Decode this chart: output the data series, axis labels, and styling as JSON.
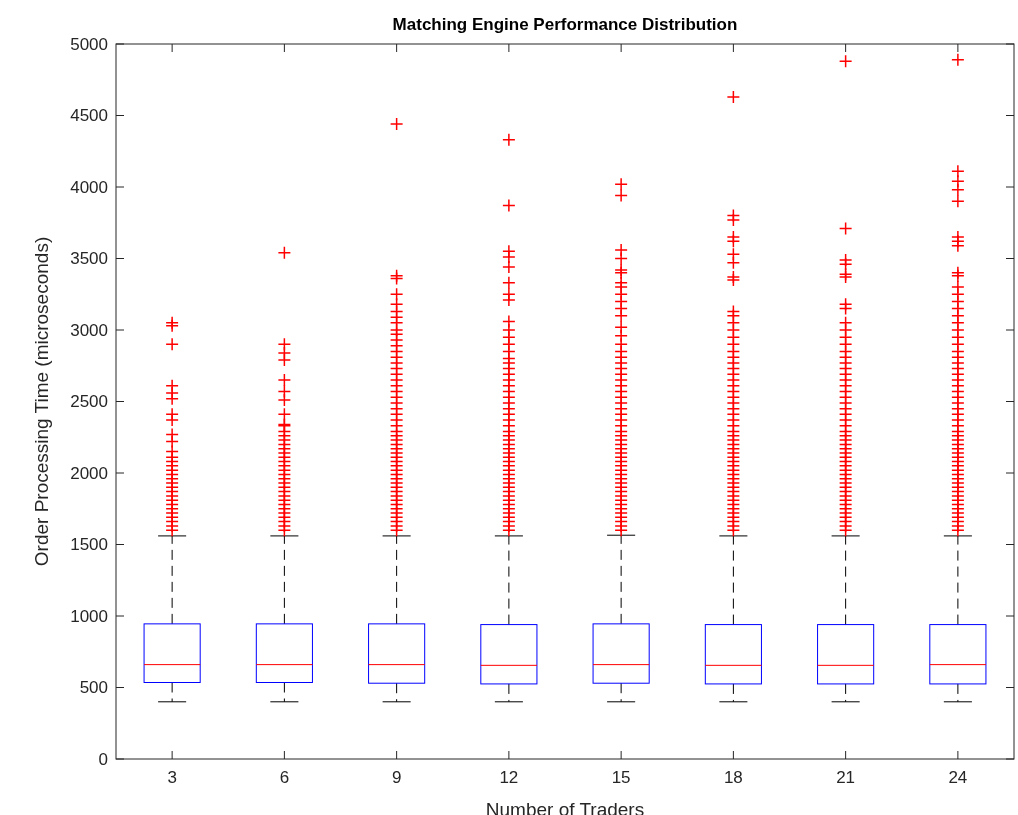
{
  "chart_data": {
    "type": "box",
    "title": "Matching Engine Performance Distribution",
    "xlabel": "Number of Traders",
    "ylabel": "Order Processing Time (microseconds)",
    "categories": [
      "3",
      "6",
      "9",
      "12",
      "15",
      "18",
      "21",
      "24"
    ],
    "color": "#0000ff",
    "ylim": [
      0,
      5000
    ],
    "yticks": [
      0,
      500,
      1000,
      1500,
      2000,
      2500,
      3000,
      3500,
      4000,
      4500,
      5000
    ],
    "boxes": [
      {
        "low": 400,
        "q1": 535,
        "median": 660,
        "q3": 945,
        "high": 1560,
        "outliers": [
          1600,
          1630,
          1660,
          1690,
          1720,
          1750,
          1780,
          1810,
          1840,
          1870,
          1900,
          1930,
          1960,
          1990,
          2020,
          2050,
          2080,
          2110,
          2150,
          2220,
          2270,
          2370,
          2410,
          2520,
          2560,
          2610,
          2900,
          3030,
          3050
        ]
      },
      {
        "low": 400,
        "q1": 535,
        "median": 660,
        "q3": 945,
        "high": 1560,
        "outliers": [
          1600,
          1630,
          1660,
          1690,
          1720,
          1750,
          1780,
          1810,
          1840,
          1870,
          1900,
          1930,
          1960,
          1990,
          2020,
          2050,
          2080,
          2110,
          2140,
          2170,
          2200,
          2230,
          2260,
          2290,
          2330,
          2340,
          2410,
          2510,
          2570,
          2650,
          2790,
          2840,
          2900,
          3540
        ]
      },
      {
        "low": 400,
        "q1": 530,
        "median": 660,
        "q3": 945,
        "high": 1560,
        "outliers": [
          1600,
          1630,
          1660,
          1690,
          1720,
          1750,
          1780,
          1810,
          1840,
          1870,
          1900,
          1930,
          1960,
          1990,
          2020,
          2050,
          2080,
          2110,
          2140,
          2170,
          2200,
          2230,
          2260,
          2290,
          2330,
          2370,
          2410,
          2450,
          2490,
          2530,
          2570,
          2610,
          2650,
          2690,
          2730,
          2770,
          2810,
          2850,
          2890,
          2930,
          2970,
          3000,
          3050,
          3090,
          3130,
          3180,
          3250,
          3360,
          3380,
          4440
        ]
      },
      {
        "low": 400,
        "q1": 525,
        "median": 655,
        "q3": 940,
        "high": 1560,
        "outliers": [
          1600,
          1630,
          1660,
          1690,
          1720,
          1750,
          1780,
          1810,
          1840,
          1870,
          1900,
          1930,
          1960,
          1990,
          2020,
          2050,
          2080,
          2110,
          2140,
          2170,
          2200,
          2230,
          2260,
          2290,
          2330,
          2370,
          2410,
          2450,
          2490,
          2530,
          2570,
          2610,
          2650,
          2690,
          2730,
          2770,
          2800,
          2850,
          2900,
          2950,
          3000,
          3060,
          3210,
          3250,
          3330,
          3440,
          3510,
          3550,
          3870,
          4330
        ]
      },
      {
        "low": 400,
        "q1": 530,
        "median": 660,
        "q3": 945,
        "high": 1565,
        "outliers": [
          1600,
          1630,
          1660,
          1690,
          1720,
          1750,
          1780,
          1810,
          1840,
          1870,
          1900,
          1930,
          1960,
          1990,
          2020,
          2050,
          2080,
          2110,
          2140,
          2170,
          2200,
          2230,
          2260,
          2290,
          2330,
          2370,
          2410,
          2450,
          2490,
          2530,
          2570,
          2610,
          2650,
          2690,
          2730,
          2770,
          2810,
          2850,
          2900,
          2960,
          3020,
          3100,
          3150,
          3200,
          3250,
          3300,
          3330,
          3400,
          3420,
          3500,
          3560,
          3940,
          4020
        ]
      },
      {
        "low": 400,
        "q1": 525,
        "median": 655,
        "q3": 940,
        "high": 1560,
        "outliers": [
          1600,
          1630,
          1660,
          1690,
          1720,
          1750,
          1780,
          1810,
          1840,
          1870,
          1900,
          1930,
          1960,
          1990,
          2020,
          2050,
          2080,
          2110,
          2140,
          2170,
          2200,
          2230,
          2260,
          2290,
          2330,
          2370,
          2410,
          2450,
          2490,
          2530,
          2570,
          2610,
          2650,
          2690,
          2730,
          2770,
          2810,
          2850,
          2900,
          2950,
          3000,
          3050,
          3100,
          3130,
          3350,
          3370,
          3470,
          3530,
          3620,
          3650,
          3770,
          3800,
          4630
        ]
      },
      {
        "low": 400,
        "q1": 525,
        "median": 655,
        "q3": 940,
        "high": 1560,
        "outliers": [
          1600,
          1630,
          1660,
          1690,
          1720,
          1750,
          1780,
          1810,
          1840,
          1870,
          1900,
          1930,
          1960,
          1990,
          2020,
          2050,
          2080,
          2110,
          2140,
          2170,
          2200,
          2230,
          2260,
          2290,
          2330,
          2370,
          2410,
          2450,
          2490,
          2530,
          2570,
          2610,
          2650,
          2690,
          2730,
          2770,
          2810,
          2850,
          2900,
          2950,
          3000,
          3050,
          3150,
          3180,
          3370,
          3390,
          3460,
          3490,
          3710,
          4880
        ]
      },
      {
        "low": 400,
        "q1": 525,
        "median": 660,
        "q3": 940,
        "high": 1560,
        "outliers": [
          1600,
          1630,
          1660,
          1690,
          1720,
          1750,
          1780,
          1810,
          1840,
          1870,
          1900,
          1930,
          1960,
          1990,
          2020,
          2050,
          2080,
          2110,
          2140,
          2170,
          2200,
          2230,
          2260,
          2290,
          2330,
          2370,
          2410,
          2450,
          2490,
          2530,
          2570,
          2610,
          2650,
          2690,
          2730,
          2770,
          2810,
          2850,
          2900,
          2950,
          3000,
          3050,
          3100,
          3150,
          3200,
          3250,
          3300,
          3380,
          3400,
          3590,
          3620,
          3650,
          3900,
          3980,
          4040,
          4110,
          4890
        ]
      }
    ]
  }
}
